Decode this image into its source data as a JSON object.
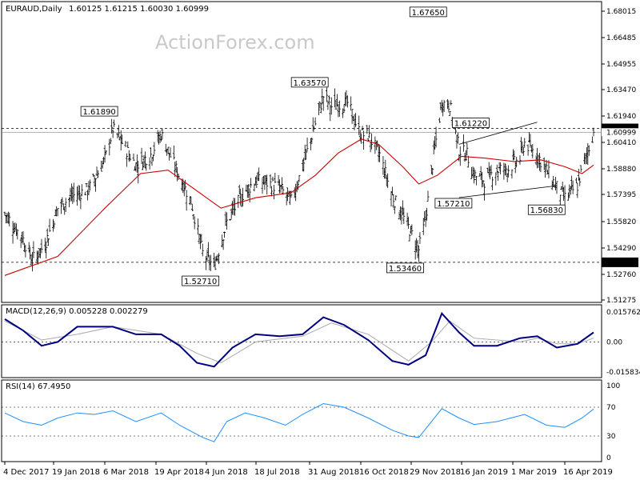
{
  "header": {
    "symbol": "EURAUD,Daily",
    "ohlc": "1.60125 1.61215 1.60030 1.60999"
  },
  "watermark": "ActionForex.com",
  "chart_data": [
    {
      "type": "bar",
      "subtype": "ohlc",
      "title": "EURAUD,Daily",
      "ylim": [
        1.51275,
        1.68015
      ],
      "y_ticks": [
        "1.68015",
        "1.66485",
        "1.64955",
        "1.63470",
        "1.61940",
        "1.60410",
        "1.58880",
        "1.57395",
        "1.55820",
        "1.54290",
        "1.52760",
        "1.51275"
      ],
      "x_ticks": [
        "4 Dec 2017",
        "19 Jan 2018",
        "6 Mar 2018",
        "19 Apr 2018",
        "4 Jun 2018",
        "18 Jul 2018",
        "31 Aug 2018",
        "16 Oct 2018",
        "29 Nov 2018",
        "16 Jan 2019",
        "1 Mar 2019",
        "16 Apr 2019"
      ],
      "price_series": {
        "name": "EURAUD",
        "points": [
          [
            "2017-12-04",
            1.563
          ],
          [
            "2017-12-20",
            1.548
          ],
          [
            "2017-12-28",
            1.536
          ],
          [
            "2018-01-08",
            1.545
          ],
          [
            "2018-01-19",
            1.566
          ],
          [
            "2018-02-01",
            1.573
          ],
          [
            "2018-02-15",
            1.577
          ],
          [
            "2018-03-01",
            1.594
          ],
          [
            "2018-03-08",
            1.612
          ],
          [
            "2018-03-15",
            1.605
          ],
          [
            "2018-03-28",
            1.591
          ],
          [
            "2018-04-10",
            1.597
          ],
          [
            "2018-04-19",
            1.609
          ],
          [
            "2018-05-01",
            1.59
          ],
          [
            "2018-05-15",
            1.57
          ],
          [
            "2018-05-25",
            1.54
          ],
          [
            "2018-06-04",
            1.532
          ],
          [
            "2018-06-15",
            1.558
          ],
          [
            "2018-06-29",
            1.574
          ],
          [
            "2018-07-10",
            1.582
          ],
          [
            "2018-07-18",
            1.581
          ],
          [
            "2018-07-31",
            1.578
          ],
          [
            "2018-08-10",
            1.57
          ],
          [
            "2018-08-20",
            1.59
          ],
          [
            "2018-08-31",
            1.615
          ],
          [
            "2018-09-07",
            1.631
          ],
          [
            "2018-09-14",
            1.625
          ],
          [
            "2018-09-28",
            1.627
          ],
          [
            "2018-10-09",
            1.609
          ],
          [
            "2018-10-16",
            1.608
          ],
          [
            "2018-10-26",
            1.597
          ],
          [
            "2018-11-06",
            1.573
          ],
          [
            "2018-11-20",
            1.555
          ],
          [
            "2018-11-29",
            1.542
          ],
          [
            "2018-12-05",
            1.56
          ],
          [
            "2018-12-12",
            1.597
          ],
          [
            "2018-12-19",
            1.627
          ],
          [
            "2018-12-26",
            1.626
          ],
          [
            "2019-01-03",
            1.6
          ],
          [
            "2019-01-10",
            1.597
          ],
          [
            "2019-01-16",
            1.585
          ],
          [
            "2019-01-25",
            1.582
          ],
          [
            "2019-02-05",
            1.588
          ],
          [
            "2019-02-15",
            1.589
          ],
          [
            "2019-02-25",
            1.595
          ],
          [
            "2019-03-01",
            1.604
          ],
          [
            "2019-03-12",
            1.597
          ],
          [
            "2019-03-20",
            1.588
          ],
          [
            "2019-03-29",
            1.578
          ],
          [
            "2019-04-05",
            1.572
          ],
          [
            "2019-04-16",
            1.579
          ],
          [
            "2019-04-23",
            1.595
          ],
          [
            "2019-04-30",
            1.61
          ]
        ]
      },
      "ma_series": {
        "color": "#cc0000",
        "points": [
          [
            "2017-12-04",
            1.527
          ],
          [
            "2018-01-19",
            1.538
          ],
          [
            "2018-03-01",
            1.566
          ],
          [
            "2018-04-01",
            1.586
          ],
          [
            "2018-04-25",
            1.588
          ],
          [
            "2018-05-20",
            1.576
          ],
          [
            "2018-06-10",
            1.566
          ],
          [
            "2018-07-10",
            1.572
          ],
          [
            "2018-08-10",
            1.575
          ],
          [
            "2018-08-31",
            1.585
          ],
          [
            "2018-09-20",
            1.598
          ],
          [
            "2018-10-10",
            1.606
          ],
          [
            "2018-10-25",
            1.603
          ],
          [
            "2018-11-15",
            1.59
          ],
          [
            "2018-11-29",
            1.58
          ],
          [
            "2018-12-15",
            1.585
          ],
          [
            "2019-01-05",
            1.596
          ],
          [
            "2019-01-25",
            1.595
          ],
          [
            "2019-02-20",
            1.593
          ],
          [
            "2019-03-15",
            1.594
          ],
          [
            "2019-04-05",
            1.59
          ],
          [
            "2019-04-20",
            1.586
          ],
          [
            "2019-04-30",
            1.591
          ]
        ]
      },
      "horizontal_levels": [
        {
          "value": 1.6122,
          "label": "1.61220",
          "style": "dashed"
        },
        {
          "value": 1.5346,
          "label": "1.53460",
          "style": "dashed"
        }
      ],
      "current_price": 1.60999,
      "current_price_label": "1.60999",
      "annotations": [
        {
          "label": "1.61890",
          "date": "2018-03-08",
          "value": 1.6189
        },
        {
          "label": "1.52710",
          "date": "2018-06-04",
          "value": 1.5271
        },
        {
          "label": "1.63570",
          "date": "2018-09-07",
          "value": 1.6357
        },
        {
          "label": "1.67650",
          "date": "2018-12-19",
          "value": 1.6765
        },
        {
          "label": "1.53460",
          "date": "2018-11-29",
          "value": 1.5346
        },
        {
          "label": "1.61220",
          "date": "2019-01-25",
          "value": 1.6122
        },
        {
          "label": "1.57210",
          "date": "2019-01-10",
          "value": 1.5721
        },
        {
          "label": "1.56830",
          "date": "2019-04-01",
          "value": 1.5683
        }
      ],
      "trendlines": [
        {
          "from": [
            "2019-01-03",
            1.603
          ],
          "to": [
            "2019-03-12",
            1.6158
          ]
        },
        {
          "from": [
            "2019-01-03",
            1.5721
          ],
          "to": [
            "2019-03-29",
            1.579
          ]
        }
      ]
    },
    {
      "type": "line",
      "title": "MACD(12,26,9) 0.005228 0.002279",
      "ylim": [
        -0.015834,
        0.015762
      ],
      "y_ticks": [
        "0.015762",
        "0.00",
        "-0.015834"
      ],
      "series": [
        {
          "name": "MACD",
          "values": [
            [
              "2017-12-04",
              0.012
            ],
            [
              "2017-12-20",
              0.006
            ],
            [
              "2018-01-05",
              -0.002
            ],
            [
              "2018-01-19",
              0.0
            ],
            [
              "2018-02-05",
              0.008
            ],
            [
              "2018-02-20",
              0.008
            ],
            [
              "2018-03-08",
              0.008
            ],
            [
              "2018-03-28",
              0.004
            ],
            [
              "2018-04-19",
              0.004
            ],
            [
              "2018-05-05",
              -0.002
            ],
            [
              "2018-05-20",
              -0.011
            ],
            [
              "2018-06-04",
              -0.013
            ],
            [
              "2018-06-20",
              -0.003
            ],
            [
              "2018-07-10",
              0.004
            ],
            [
              "2018-07-31",
              0.003
            ],
            [
              "2018-08-20",
              0.004
            ],
            [
              "2018-09-07",
              0.013
            ],
            [
              "2018-09-25",
              0.009
            ],
            [
              "2018-10-16",
              0.001
            ],
            [
              "2018-11-06",
              -0.01
            ],
            [
              "2018-11-20",
              -0.012
            ],
            [
              "2018-12-05",
              -0.007
            ],
            [
              "2018-12-19",
              0.015
            ],
            [
              "2019-01-03",
              0.005
            ],
            [
              "2019-01-16",
              -0.002
            ],
            [
              "2019-02-05",
              -0.002
            ],
            [
              "2019-02-25",
              0.002
            ],
            [
              "2019-03-12",
              0.003
            ],
            [
              "2019-03-29",
              -0.003
            ],
            [
              "2019-04-16",
              -0.001
            ],
            [
              "2019-04-30",
              0.005
            ]
          ]
        },
        {
          "name": "Signal",
          "values": [
            [
              "2017-12-04",
              0.011
            ],
            [
              "2018-01-05",
              0.001
            ],
            [
              "2018-02-05",
              0.004
            ],
            [
              "2018-03-08",
              0.008
            ],
            [
              "2018-04-19",
              0.004
            ],
            [
              "2018-05-20",
              -0.006
            ],
            [
              "2018-06-10",
              -0.011
            ],
            [
              "2018-07-10",
              0.0
            ],
            [
              "2018-08-20",
              0.003
            ],
            [
              "2018-09-14",
              0.01
            ],
            [
              "2018-10-16",
              0.004
            ],
            [
              "2018-11-20",
              -0.01
            ],
            [
              "2018-12-10",
              0.0
            ],
            [
              "2018-12-26",
              0.011
            ],
            [
              "2019-01-16",
              0.002
            ],
            [
              "2019-02-25",
              0.0
            ],
            [
              "2019-03-12",
              0.002
            ],
            [
              "2019-03-29",
              -0.001
            ],
            [
              "2019-04-16",
              -0.001
            ],
            [
              "2019-04-30",
              0.002
            ]
          ]
        }
      ]
    },
    {
      "type": "line",
      "title": "RSI(14) 67.4950",
      "ylim": [
        0,
        100
      ],
      "y_ticks": [
        "100",
        "70",
        "30",
        "0"
      ],
      "levels": [
        70,
        30
      ],
      "series": [
        {
          "name": "RSI",
          "values": [
            [
              "2017-12-04",
              62
            ],
            [
              "2017-12-20",
              50
            ],
            [
              "2018-01-05",
              45
            ],
            [
              "2018-01-19",
              55
            ],
            [
              "2018-02-05",
              62
            ],
            [
              "2018-02-20",
              60
            ],
            [
              "2018-03-08",
              65
            ],
            [
              "2018-03-28",
              50
            ],
            [
              "2018-04-19",
              62
            ],
            [
              "2018-05-05",
              45
            ],
            [
              "2018-05-25",
              28
            ],
            [
              "2018-06-04",
              22
            ],
            [
              "2018-06-15",
              50
            ],
            [
              "2018-07-01",
              62
            ],
            [
              "2018-07-18",
              55
            ],
            [
              "2018-08-05",
              45
            ],
            [
              "2018-08-20",
              60
            ],
            [
              "2018-09-07",
              75
            ],
            [
              "2018-09-25",
              70
            ],
            [
              "2018-10-16",
              55
            ],
            [
              "2018-11-06",
              38
            ],
            [
              "2018-11-20",
              30
            ],
            [
              "2018-11-29",
              28
            ],
            [
              "2018-12-19",
              68
            ],
            [
              "2019-01-03",
              55
            ],
            [
              "2019-01-16",
              46
            ],
            [
              "2019-02-05",
              50
            ],
            [
              "2019-03-01",
              60
            ],
            [
              "2019-03-20",
              45
            ],
            [
              "2019-04-05",
              42
            ],
            [
              "2019-04-20",
              55
            ],
            [
              "2019-04-30",
              67.5
            ]
          ]
        }
      ]
    }
  ]
}
